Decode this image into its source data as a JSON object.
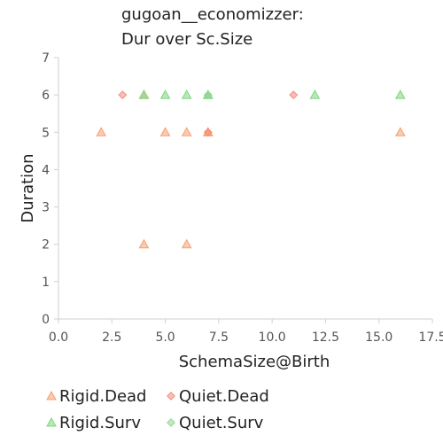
{
  "chart_data": {
    "type": "scatter",
    "title_lines": [
      "gugoan__economizzer:",
      "Dur over Sc.Size"
    ],
    "xlabel": "SchemaSize@Birth",
    "ylabel": "Duration",
    "xlim": [
      0,
      17.5
    ],
    "ylim": [
      0,
      7
    ],
    "xticks": [
      "0.0",
      "2.5",
      "5.0",
      "7.5",
      "10.0",
      "12.5",
      "15.0",
      "17.5"
    ],
    "yticks": [
      "0",
      "1",
      "2",
      "3",
      "4",
      "5",
      "6",
      "7"
    ],
    "grid": false,
    "legend_position": "bottom",
    "series": [
      {
        "name": "Rigid.Dead",
        "marker": "triangle",
        "color": "#f5a06e",
        "points": [
          {
            "x": 2,
            "y": 5
          },
          {
            "x": 5,
            "y": 5
          },
          {
            "x": 6,
            "y": 5
          },
          {
            "x": 7,
            "y": 5
          },
          {
            "x": 7,
            "y": 5
          },
          {
            "x": 16,
            "y": 5
          },
          {
            "x": 4,
            "y": 2
          },
          {
            "x": 6,
            "y": 2
          },
          {
            "x": 4,
            "y": 6
          }
        ]
      },
      {
        "name": "Quiet.Dead",
        "marker": "diamond",
        "color": "#f08c78",
        "points": [
          {
            "x": 3,
            "y": 6
          },
          {
            "x": 11,
            "y": 6
          },
          {
            "x": 7,
            "y": 5
          }
        ]
      },
      {
        "name": "Rigid.Surv",
        "marker": "triangle",
        "color": "#7dd67d",
        "points": [
          {
            "x": 4,
            "y": 6
          },
          {
            "x": 5,
            "y": 6
          },
          {
            "x": 6,
            "y": 6
          },
          {
            "x": 7,
            "y": 6
          },
          {
            "x": 7,
            "y": 6
          },
          {
            "x": 12,
            "y": 6
          },
          {
            "x": 16,
            "y": 6
          }
        ]
      },
      {
        "name": "Quiet.Surv",
        "marker": "diamond",
        "color": "#8fd88f",
        "points": [
          {
            "x": 7,
            "y": 6
          }
        ]
      }
    ]
  }
}
